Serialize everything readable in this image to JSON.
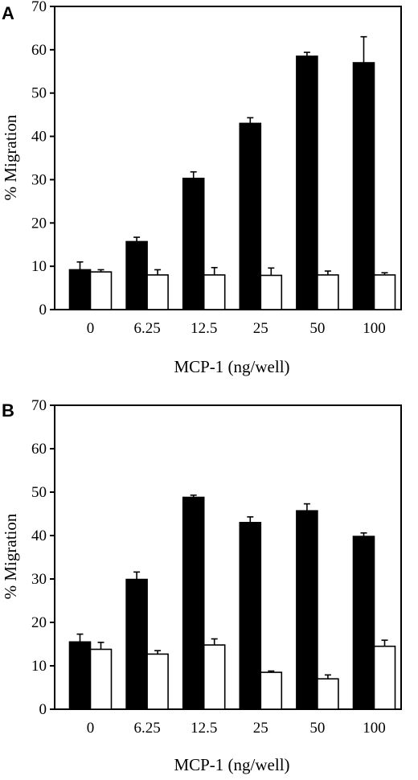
{
  "chart_data": [
    {
      "panel": "A",
      "type": "bar",
      "xlabel": "MCP-1 (ng/well)",
      "ylabel": "% Migration",
      "ylim": [
        0,
        70
      ],
      "yticks": [
        0,
        10,
        20,
        30,
        40,
        50,
        60,
        70
      ],
      "categories": [
        "0",
        "6.25",
        "12.5",
        "25",
        "50",
        "100"
      ],
      "series": [
        {
          "color": "#000000",
          "values": [
            9.2,
            15.7,
            30.3,
            43.0,
            58.5,
            57.0
          ],
          "errors": [
            1.8,
            1.0,
            1.5,
            1.3,
            0.9,
            6.0
          ]
        },
        {
          "color": "#ffffff",
          "values": [
            8.7,
            8.0,
            8.0,
            7.9,
            8.0,
            8.0
          ],
          "errors": [
            0.5,
            1.2,
            1.7,
            1.7,
            0.9,
            0.5
          ]
        }
      ]
    },
    {
      "panel": "B",
      "type": "bar",
      "xlabel": "MCP-1 (ng/well)",
      "ylabel": "% Migration",
      "ylim": [
        0,
        70
      ],
      "yticks": [
        0,
        10,
        20,
        30,
        40,
        50,
        60,
        70
      ],
      "categories": [
        "0",
        "6.25",
        "12.5",
        "25",
        "50",
        "100"
      ],
      "series": [
        {
          "color": "#000000",
          "values": [
            15.5,
            29.9,
            48.8,
            43.0,
            45.7,
            39.8
          ],
          "errors": [
            1.8,
            1.7,
            0.5,
            1.3,
            1.6,
            0.8
          ]
        },
        {
          "color": "#ffffff",
          "values": [
            13.8,
            12.7,
            14.8,
            8.5,
            7.0,
            14.5
          ],
          "errors": [
            1.6,
            0.8,
            1.4,
            0.3,
            0.9,
            1.4
          ]
        }
      ]
    }
  ]
}
